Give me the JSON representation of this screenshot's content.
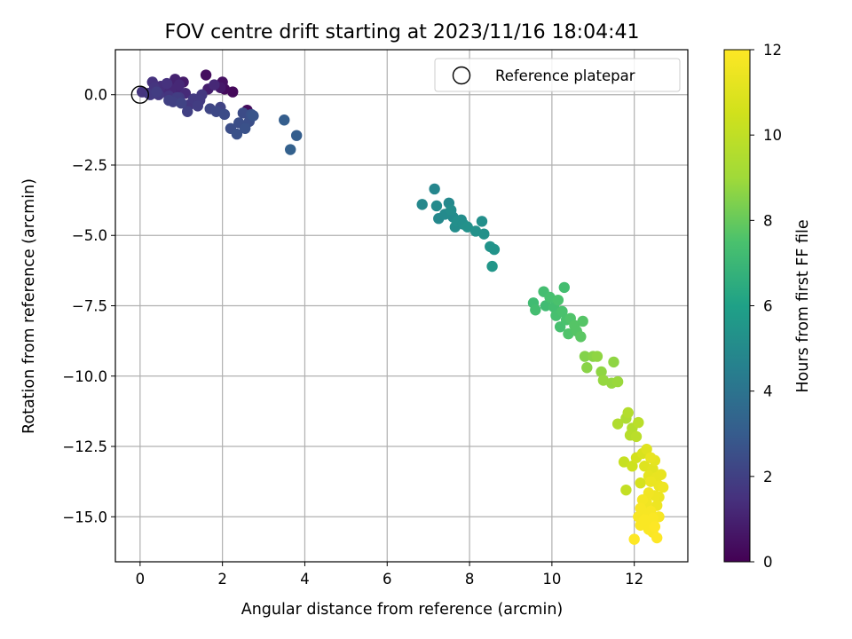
{
  "chart_data": {
    "type": "scatter",
    "title": "FOV centre drift starting at 2023/11/16 18:04:41",
    "xlabel": "Angular distance from reference (arcmin)",
    "ylabel": "Rotation from reference (arcmin)",
    "xlim": [
      -0.6,
      13.3
    ],
    "ylim": [
      -16.6,
      1.6
    ],
    "xticks": [
      0,
      2,
      4,
      6,
      8,
      10,
      12
    ],
    "xtick_labels": [
      "0",
      "2",
      "4",
      "6",
      "8",
      "10",
      "12"
    ],
    "yticks": [
      0.0,
      -2.5,
      -5.0,
      -7.5,
      -10.0,
      -12.5,
      -15.0
    ],
    "ytick_labels": [
      "0.0",
      "−2.5",
      "−5.0",
      "−7.5",
      "−10.0",
      "−12.5",
      "−15.0"
    ],
    "grid": true,
    "legend": {
      "label": "Reference platepar",
      "placement": "top-right",
      "marker": "open-circle"
    },
    "reference_point": {
      "x": 0,
      "y": 0
    },
    "colorbar": {
      "label": "Hours from first FF file",
      "range": [
        0,
        12
      ],
      "ticks": [
        0,
        2,
        4,
        6,
        8,
        10,
        12
      ],
      "tick_labels": [
        "0",
        "2",
        "4",
        "6",
        "8",
        "10",
        "12"
      ],
      "colormap": "viridis"
    },
    "points": [
      {
        "x": 0.05,
        "y": 0.1,
        "h": 1.6
      },
      {
        "x": 0.2,
        "y": 0.05,
        "h": 1.5
      },
      {
        "x": 0.3,
        "y": 0.45,
        "h": 1.5
      },
      {
        "x": 0.35,
        "y": 0.25,
        "h": 1.6
      },
      {
        "x": 0.45,
        "y": 0.0,
        "h": 1.7
      },
      {
        "x": 0.5,
        "y": 0.3,
        "h": 1.4
      },
      {
        "x": 0.6,
        "y": 0.15,
        "h": 1.3
      },
      {
        "x": 0.65,
        "y": 0.4,
        "h": 1.5
      },
      {
        "x": 0.7,
        "y": -0.05,
        "h": 1.6
      },
      {
        "x": 0.75,
        "y": 0.2,
        "h": 1.2
      },
      {
        "x": 0.85,
        "y": 0.55,
        "h": 1.0
      },
      {
        "x": 0.9,
        "y": 0.1,
        "h": 1.1
      },
      {
        "x": 0.95,
        "y": 0.35,
        "h": 1.2
      },
      {
        "x": 1.05,
        "y": 0.45,
        "h": 0.8
      },
      {
        "x": 1.1,
        "y": 0.05,
        "h": 1.3
      },
      {
        "x": 0.25,
        "y": 0.0,
        "h": 1.8
      },
      {
        "x": 0.4,
        "y": 0.1,
        "h": 1.9
      },
      {
        "x": 0.8,
        "y": -0.25,
        "h": 2.0
      },
      {
        "x": 0.9,
        "y": -0.1,
        "h": 1.9
      },
      {
        "x": 0.7,
        "y": -0.2,
        "h": 2.0
      },
      {
        "x": 1.0,
        "y": -0.3,
        "h": 2.1
      },
      {
        "x": 0.95,
        "y": -0.1,
        "h": 1.8
      },
      {
        "x": 1.2,
        "y": -0.35,
        "h": 1.7
      },
      {
        "x": 1.3,
        "y": -0.15,
        "h": 1.8
      },
      {
        "x": 1.45,
        "y": -0.2,
        "h": 1.8
      },
      {
        "x": 1.5,
        "y": 0.0,
        "h": 1.7
      },
      {
        "x": 1.4,
        "y": -0.4,
        "h": 1.9
      },
      {
        "x": 1.15,
        "y": -0.6,
        "h": 2.0
      },
      {
        "x": 1.6,
        "y": 0.7,
        "h": 0.4
      },
      {
        "x": 1.65,
        "y": 0.2,
        "h": 0.9
      },
      {
        "x": 1.8,
        "y": 0.35,
        "h": 1.2
      },
      {
        "x": 1.95,
        "y": 0.25,
        "h": 0.7
      },
      {
        "x": 2.0,
        "y": 0.45,
        "h": 0.5
      },
      {
        "x": 2.05,
        "y": 0.2,
        "h": 0.3
      },
      {
        "x": 2.25,
        "y": 0.1,
        "h": 0.2
      },
      {
        "x": 1.7,
        "y": -0.5,
        "h": 2.2
      },
      {
        "x": 1.85,
        "y": -0.6,
        "h": 2.3
      },
      {
        "x": 1.95,
        "y": -0.45,
        "h": 2.1
      },
      {
        "x": 2.05,
        "y": -0.7,
        "h": 2.4
      },
      {
        "x": 2.2,
        "y": -1.2,
        "h": 2.5
      },
      {
        "x": 2.35,
        "y": -1.4,
        "h": 2.6
      },
      {
        "x": 2.4,
        "y": -1.0,
        "h": 2.5
      },
      {
        "x": 2.5,
        "y": -0.65,
        "h": 2.4
      },
      {
        "x": 2.55,
        "y": -1.2,
        "h": 2.6
      },
      {
        "x": 2.6,
        "y": -0.55,
        "h": 0.3
      },
      {
        "x": 2.65,
        "y": -0.95,
        "h": 2.5
      },
      {
        "x": 2.7,
        "y": -0.7,
        "h": 2.6
      },
      {
        "x": 2.75,
        "y": -0.75,
        "h": 2.7
      },
      {
        "x": 3.5,
        "y": -0.9,
        "h": 3.1
      },
      {
        "x": 3.65,
        "y": -1.95,
        "h": 3.2
      },
      {
        "x": 3.8,
        "y": -1.45,
        "h": 3.1
      },
      {
        "x": 6.85,
        "y": -3.9,
        "h": 4.9
      },
      {
        "x": 7.15,
        "y": -3.35,
        "h": 4.8
      },
      {
        "x": 7.2,
        "y": -3.95,
        "h": 5.0
      },
      {
        "x": 7.25,
        "y": -4.4,
        "h": 4.9
      },
      {
        "x": 7.4,
        "y": -4.25,
        "h": 5.0
      },
      {
        "x": 7.5,
        "y": -3.85,
        "h": 4.9
      },
      {
        "x": 7.55,
        "y": -4.1,
        "h": 5.1
      },
      {
        "x": 7.6,
        "y": -4.35,
        "h": 5.0
      },
      {
        "x": 7.65,
        "y": -4.7,
        "h": 5.1
      },
      {
        "x": 7.7,
        "y": -4.5,
        "h": 5.2
      },
      {
        "x": 7.8,
        "y": -4.45,
        "h": 5.1
      },
      {
        "x": 7.85,
        "y": -4.6,
        "h": 5.2
      },
      {
        "x": 7.95,
        "y": -4.7,
        "h": 5.3
      },
      {
        "x": 8.15,
        "y": -4.85,
        "h": 5.3
      },
      {
        "x": 8.3,
        "y": -4.5,
        "h": 5.2
      },
      {
        "x": 8.35,
        "y": -4.95,
        "h": 5.3
      },
      {
        "x": 8.5,
        "y": -5.4,
        "h": 5.4
      },
      {
        "x": 8.6,
        "y": -5.5,
        "h": 5.4
      },
      {
        "x": 8.55,
        "y": -6.1,
        "h": 5.5
      },
      {
        "x": 9.55,
        "y": -7.4,
        "h": 7.2
      },
      {
        "x": 9.6,
        "y": -7.65,
        "h": 7.3
      },
      {
        "x": 9.8,
        "y": -7.0,
        "h": 7.3
      },
      {
        "x": 9.85,
        "y": -7.5,
        "h": 7.2
      },
      {
        "x": 9.95,
        "y": -7.2,
        "h": 7.4
      },
      {
        "x": 10.05,
        "y": -7.55,
        "h": 7.3
      },
      {
        "x": 10.1,
        "y": -7.85,
        "h": 7.4
      },
      {
        "x": 10.15,
        "y": -7.3,
        "h": 7.5
      },
      {
        "x": 10.2,
        "y": -8.25,
        "h": 7.4
      },
      {
        "x": 10.25,
        "y": -7.7,
        "h": 7.5
      },
      {
        "x": 10.3,
        "y": -6.85,
        "h": 7.3
      },
      {
        "x": 10.35,
        "y": -8.0,
        "h": 7.5
      },
      {
        "x": 10.4,
        "y": -8.5,
        "h": 7.6
      },
      {
        "x": 10.45,
        "y": -7.95,
        "h": 7.6
      },
      {
        "x": 10.55,
        "y": -8.2,
        "h": 7.7
      },
      {
        "x": 10.6,
        "y": -8.4,
        "h": 7.7
      },
      {
        "x": 10.7,
        "y": -8.6,
        "h": 7.8
      },
      {
        "x": 10.75,
        "y": -8.05,
        "h": 7.7
      },
      {
        "x": 10.8,
        "y": -9.3,
        "h": 8.5
      },
      {
        "x": 10.85,
        "y": -9.7,
        "h": 8.6
      },
      {
        "x": 11.0,
        "y": -9.3,
        "h": 8.6
      },
      {
        "x": 11.1,
        "y": -9.3,
        "h": 8.7
      },
      {
        "x": 11.2,
        "y": -9.85,
        "h": 8.7
      },
      {
        "x": 11.25,
        "y": -10.15,
        "h": 8.8
      },
      {
        "x": 11.45,
        "y": -10.25,
        "h": 8.8
      },
      {
        "x": 11.5,
        "y": -9.5,
        "h": 8.7
      },
      {
        "x": 11.6,
        "y": -10.2,
        "h": 8.9
      },
      {
        "x": 11.6,
        "y": -11.7,
        "h": 9.5
      },
      {
        "x": 11.8,
        "y": -11.5,
        "h": 9.4
      },
      {
        "x": 11.85,
        "y": -11.3,
        "h": 9.6
      },
      {
        "x": 11.9,
        "y": -12.1,
        "h": 9.7
      },
      {
        "x": 11.95,
        "y": -11.85,
        "h": 9.6
      },
      {
        "x": 12.05,
        "y": -12.15,
        "h": 9.8
      },
      {
        "x": 12.1,
        "y": -11.65,
        "h": 9.8
      },
      {
        "x": 11.75,
        "y": -13.05,
        "h": 10.2
      },
      {
        "x": 11.8,
        "y": -14.05,
        "h": 10.1
      },
      {
        "x": 11.95,
        "y": -13.2,
        "h": 10.4
      },
      {
        "x": 12.05,
        "y": -12.9,
        "h": 10.6
      },
      {
        "x": 12.15,
        "y": -13.8,
        "h": 10.7
      },
      {
        "x": 12.2,
        "y": -12.75,
        "h": 10.8
      },
      {
        "x": 12.25,
        "y": -13.2,
        "h": 11.0
      },
      {
        "x": 12.3,
        "y": -12.6,
        "h": 11.0
      },
      {
        "x": 12.35,
        "y": -13.55,
        "h": 11.2
      },
      {
        "x": 12.4,
        "y": -12.9,
        "h": 11.3
      },
      {
        "x": 12.45,
        "y": -13.3,
        "h": 11.1
      },
      {
        "x": 12.5,
        "y": -13.0,
        "h": 11.2
      },
      {
        "x": 12.55,
        "y": -13.6,
        "h": 11.3
      },
      {
        "x": 12.6,
        "y": -13.9,
        "h": 11.4
      },
      {
        "x": 12.65,
        "y": -13.5,
        "h": 11.3
      },
      {
        "x": 12.7,
        "y": -13.95,
        "h": 11.5
      },
      {
        "x": 12.6,
        "y": -14.3,
        "h": 11.4
      },
      {
        "x": 12.55,
        "y": -14.6,
        "h": 11.5
      },
      {
        "x": 12.5,
        "y": -14.25,
        "h": 11.5
      },
      {
        "x": 12.4,
        "y": -13.75,
        "h": 11.4
      },
      {
        "x": 12.35,
        "y": -14.15,
        "h": 11.6
      },
      {
        "x": 12.3,
        "y": -14.5,
        "h": 11.6
      },
      {
        "x": 12.2,
        "y": -14.85,
        "h": 11.7
      },
      {
        "x": 12.15,
        "y": -14.7,
        "h": 11.8
      },
      {
        "x": 12.1,
        "y": -15.0,
        "h": 11.8
      },
      {
        "x": 12.15,
        "y": -15.3,
        "h": 11.9
      },
      {
        "x": 12.25,
        "y": -15.1,
        "h": 11.9
      },
      {
        "x": 12.3,
        "y": -14.95,
        "h": 11.8
      },
      {
        "x": 12.35,
        "y": -15.2,
        "h": 11.9
      },
      {
        "x": 12.4,
        "y": -14.8,
        "h": 11.8
      },
      {
        "x": 12.45,
        "y": -15.05,
        "h": 11.9
      },
      {
        "x": 12.5,
        "y": -15.35,
        "h": 12.0
      },
      {
        "x": 12.55,
        "y": -15.75,
        "h": 12.0
      },
      {
        "x": 12.45,
        "y": -15.55,
        "h": 11.9
      },
      {
        "x": 12.35,
        "y": -15.45,
        "h": 11.9
      },
      {
        "x": 12.0,
        "y": -15.8,
        "h": 12.0
      },
      {
        "x": 12.2,
        "y": -14.4,
        "h": 11.7
      },
      {
        "x": 12.6,
        "y": -15.0,
        "h": 11.8
      },
      {
        "x": 12.4,
        "y": -15.4,
        "h": 11.9
      }
    ]
  }
}
